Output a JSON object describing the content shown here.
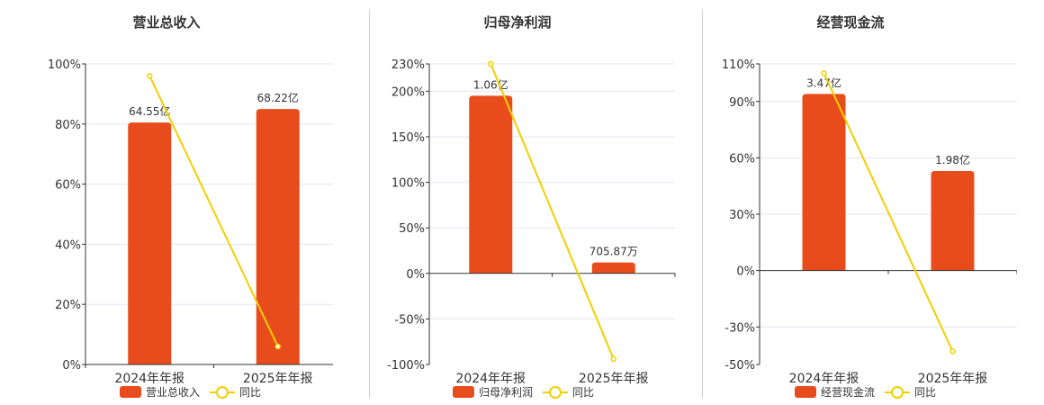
{
  "colors": {
    "bar": "#e84c1c",
    "line": "#f0d000",
    "grid": "#e4e6f0",
    "axis": "#333333",
    "text": "#333333"
  },
  "legend": {
    "bar_icon": "bar-swatch-icon",
    "line_icon": "line-circle-icon"
  },
  "chart_data": [
    {
      "type": "bar",
      "title": "营业总收入",
      "categories": [
        "2024年年报",
        "2025年年报"
      ],
      "series": [
        {
          "name": "营业总收入",
          "type": "bar",
          "values": [
            80.5,
            85.0
          ],
          "labels": [
            "64.55亿",
            "68.22亿"
          ]
        },
        {
          "name": "同比",
          "type": "line",
          "values": [
            96,
            6
          ]
        }
      ],
      "ylim": [
        0,
        100
      ],
      "yticks": [
        0,
        20,
        40,
        60,
        80,
        100
      ],
      "ytick_labels": [
        "0%",
        "20%",
        "40%",
        "60%",
        "80%",
        "100%"
      ],
      "grid": true,
      "legend": "bottom"
    },
    {
      "type": "bar",
      "title": "归母净利润",
      "categories": [
        "2024年年报",
        "2025年年报"
      ],
      "series": [
        {
          "name": "归母净利润",
          "type": "bar",
          "values": [
            195,
            12
          ],
          "labels": [
            "1.06亿",
            "705.87万"
          ]
        },
        {
          "name": "同比",
          "type": "line",
          "values": [
            230,
            -94
          ]
        }
      ],
      "ylim": [
        -100,
        230
      ],
      "yticks": [
        -100,
        -50,
        0,
        50,
        100,
        150,
        200,
        230
      ],
      "ytick_labels": [
        "-100%",
        "-50%",
        "0%",
        "50%",
        "100%",
        "150%",
        "200%",
        "230%"
      ],
      "grid": true,
      "legend": "bottom"
    },
    {
      "type": "bar",
      "title": "经营现金流",
      "categories": [
        "2024年年报",
        "2025年年报"
      ],
      "series": [
        {
          "name": "经营现金流",
          "type": "bar",
          "values": [
            94,
            53
          ],
          "labels": [
            "3.47亿",
            "1.98亿"
          ]
        },
        {
          "name": "同比",
          "type": "line",
          "values": [
            105,
            -43
          ]
        }
      ],
      "ylim": [
        -50,
        110
      ],
      "yticks": [
        -50,
        -30,
        0,
        30,
        60,
        90,
        110
      ],
      "ytick_labels": [
        "-50%",
        "-30%",
        "0%",
        "30%",
        "60%",
        "90%",
        "110%"
      ],
      "grid": true,
      "legend": "bottom"
    }
  ]
}
